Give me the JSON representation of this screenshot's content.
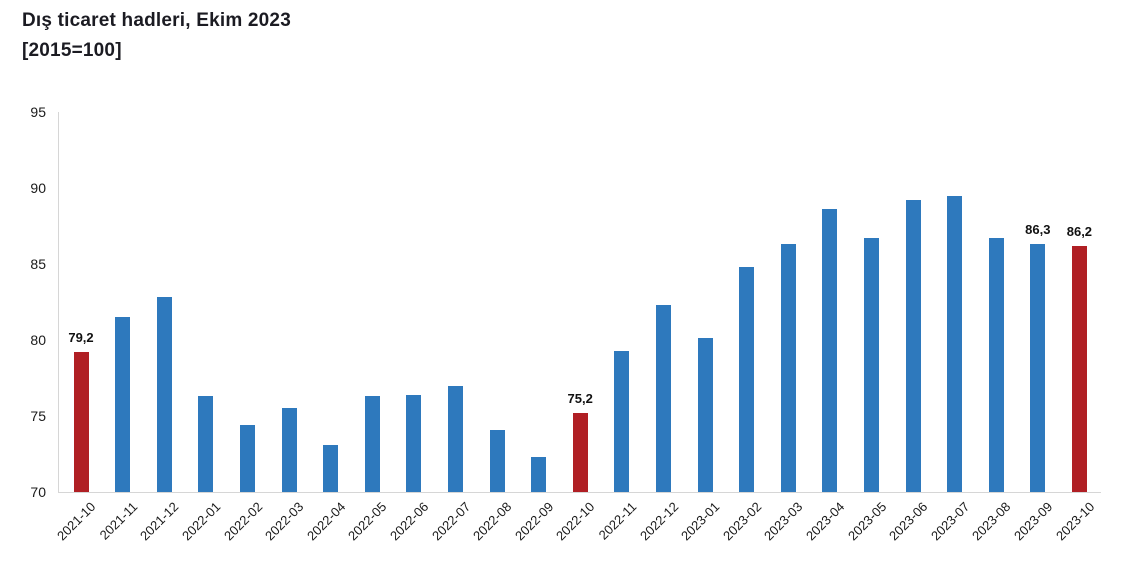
{
  "chart_data": {
    "type": "bar",
    "title": "Dış ticaret hadleri, Ekim 2023",
    "subtitle": "[2015=100]",
    "categories": [
      "2021-10",
      "2021-11",
      "2021-12",
      "2022-01",
      "2022-02",
      "2022-03",
      "2022-04",
      "2022-05",
      "2022-06",
      "2022-07",
      "2022-08",
      "2022-09",
      "2022-10",
      "2022-11",
      "2022-12",
      "2023-01",
      "2023-02",
      "2023-03",
      "2023-04",
      "2023-05",
      "2023-06",
      "2023-07",
      "2023-08",
      "2023-09",
      "2023-10"
    ],
    "values": [
      79.2,
      81.5,
      82.8,
      76.3,
      74.4,
      75.5,
      73.1,
      76.3,
      76.4,
      77.0,
      74.1,
      72.3,
      75.2,
      79.3,
      82.3,
      80.1,
      84.8,
      86.3,
      88.6,
      86.7,
      89.2,
      89.5,
      86.7,
      86.3,
      86.2
    ],
    "highlighted_indices": [
      0,
      12,
      24
    ],
    "labeled_points": [
      {
        "index": 0,
        "label": "79,2"
      },
      {
        "index": 12,
        "label": "75,2"
      },
      {
        "index": 23,
        "label": "86,3"
      },
      {
        "index": 24,
        "label": "86,2"
      }
    ],
    "ylim": [
      70,
      95
    ],
    "yticks": [
      95,
      90,
      85,
      80,
      75,
      70
    ],
    "grid": false,
    "legend": "none",
    "bar_color": "#2E79BD",
    "highlight_color": "#B01F24",
    "axis_color": "#d6d6d6"
  }
}
